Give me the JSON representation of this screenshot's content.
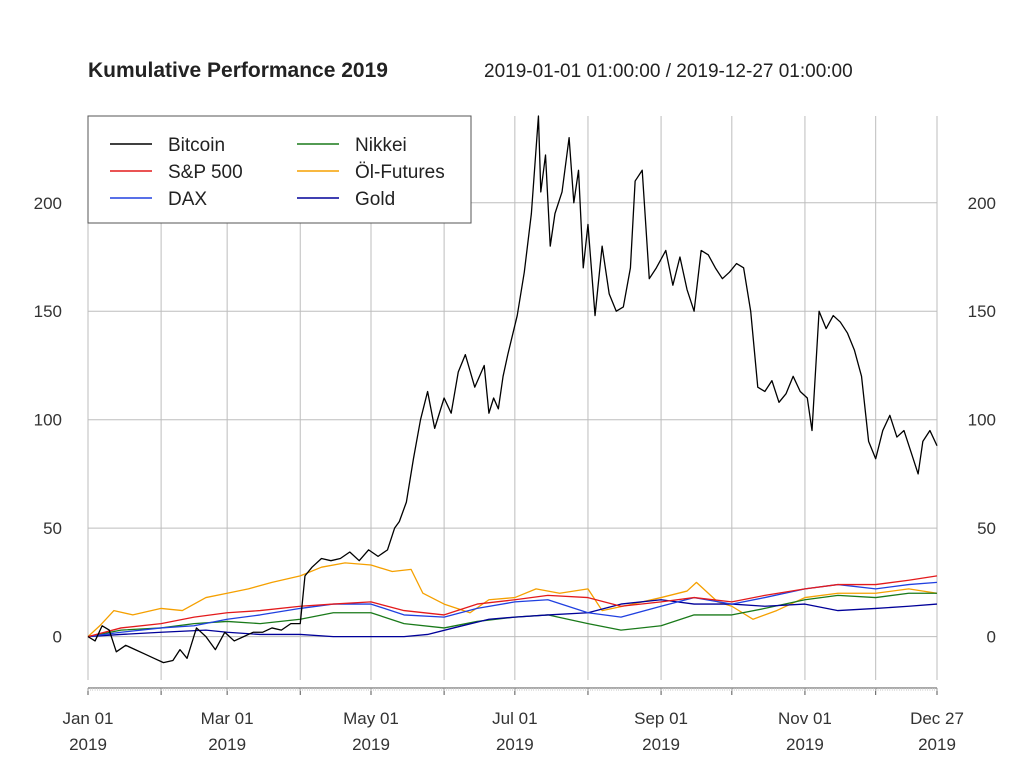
{
  "chart_data": {
    "type": "line",
    "title": "Kumulative Performance 2019",
    "subtitle": "2019-01-01 01:00:00 / 2019-12-27 01:00:00",
    "xlabel": "",
    "ylabel": "",
    "xlim": [
      "2019-01-01",
      "2019-12-27"
    ],
    "ylim": [
      -20,
      240
    ],
    "yticks": [
      0,
      50,
      100,
      150,
      200
    ],
    "xticks": [
      {
        "date": "2019-01-01",
        "label1": "Jan 01",
        "label2": "2019"
      },
      {
        "date": "2019-03-01",
        "label1": "Mar 01",
        "label2": "2019"
      },
      {
        "date": "2019-05-01",
        "label1": "May 01",
        "label2": "2019"
      },
      {
        "date": "2019-07-01",
        "label1": "Jul 01",
        "label2": "2019"
      },
      {
        "date": "2019-09-01",
        "label1": "Sep 01",
        "label2": "2019"
      },
      {
        "date": "2019-11-01",
        "label1": "Nov 01",
        "label2": "2019"
      },
      {
        "date": "2019-12-27",
        "label1": "Dec 27",
        "label2": "2019"
      }
    ],
    "grid": true,
    "legend_position": "top-left",
    "series": [
      {
        "name": "Bitcoin",
        "color": "#000000",
        "points": [
          [
            "2019-01-01",
            0
          ],
          [
            "2019-01-04",
            -2
          ],
          [
            "2019-01-07",
            5
          ],
          [
            "2019-01-10",
            3
          ],
          [
            "2019-01-13",
            -7
          ],
          [
            "2019-01-17",
            -4
          ],
          [
            "2019-01-21",
            -6
          ],
          [
            "2019-01-25",
            -8
          ],
          [
            "2019-01-29",
            -10
          ],
          [
            "2019-02-02",
            -12
          ],
          [
            "2019-02-06",
            -11
          ],
          [
            "2019-02-09",
            -6
          ],
          [
            "2019-02-12",
            -10
          ],
          [
            "2019-02-16",
            4
          ],
          [
            "2019-02-20",
            0
          ],
          [
            "2019-02-24",
            -6
          ],
          [
            "2019-02-28",
            2
          ],
          [
            "2019-03-04",
            -2
          ],
          [
            "2019-03-08",
            0
          ],
          [
            "2019-03-12",
            2
          ],
          [
            "2019-03-16",
            2
          ],
          [
            "2019-03-20",
            4
          ],
          [
            "2019-03-24",
            3
          ],
          [
            "2019-03-28",
            6
          ],
          [
            "2019-04-01",
            6
          ],
          [
            "2019-04-03",
            28
          ],
          [
            "2019-04-06",
            32
          ],
          [
            "2019-04-10",
            36
          ],
          [
            "2019-04-14",
            35
          ],
          [
            "2019-04-18",
            36
          ],
          [
            "2019-04-22",
            39
          ],
          [
            "2019-04-26",
            35
          ],
          [
            "2019-04-30",
            40
          ],
          [
            "2019-05-04",
            37
          ],
          [
            "2019-05-08",
            40
          ],
          [
            "2019-05-11",
            50
          ],
          [
            "2019-05-13",
            53
          ],
          [
            "2019-05-16",
            62
          ],
          [
            "2019-05-19",
            82
          ],
          [
            "2019-05-22",
            100
          ],
          [
            "2019-05-25",
            113
          ],
          [
            "2019-05-28",
            96
          ],
          [
            "2019-06-01",
            110
          ],
          [
            "2019-06-04",
            103
          ],
          [
            "2019-06-07",
            122
          ],
          [
            "2019-06-10",
            130
          ],
          [
            "2019-06-14",
            115
          ],
          [
            "2019-06-18",
            125
          ],
          [
            "2019-06-20",
            103
          ],
          [
            "2019-06-22",
            110
          ],
          [
            "2019-06-24",
            105
          ],
          [
            "2019-06-26",
            120
          ],
          [
            "2019-06-28",
            130
          ],
          [
            "2019-07-02",
            148
          ],
          [
            "2019-07-05",
            168
          ],
          [
            "2019-07-08",
            195
          ],
          [
            "2019-07-11",
            240
          ],
          [
            "2019-07-12",
            205
          ],
          [
            "2019-07-14",
            222
          ],
          [
            "2019-07-16",
            180
          ],
          [
            "2019-07-18",
            195
          ],
          [
            "2019-07-21",
            205
          ],
          [
            "2019-07-24",
            230
          ],
          [
            "2019-07-26",
            200
          ],
          [
            "2019-07-28",
            215
          ],
          [
            "2019-07-30",
            170
          ],
          [
            "2019-08-01",
            190
          ],
          [
            "2019-08-04",
            148
          ],
          [
            "2019-08-07",
            180
          ],
          [
            "2019-08-10",
            158
          ],
          [
            "2019-08-13",
            150
          ],
          [
            "2019-08-16",
            152
          ],
          [
            "2019-08-19",
            170
          ],
          [
            "2019-08-21",
            210
          ],
          [
            "2019-08-24",
            215
          ],
          [
            "2019-08-27",
            165
          ],
          [
            "2019-08-30",
            170
          ],
          [
            "2019-09-03",
            178
          ],
          [
            "2019-09-06",
            162
          ],
          [
            "2019-09-09",
            175
          ],
          [
            "2019-09-12",
            160
          ],
          [
            "2019-09-15",
            150
          ],
          [
            "2019-09-18",
            178
          ],
          [
            "2019-09-21",
            176
          ],
          [
            "2019-09-24",
            170
          ],
          [
            "2019-09-27",
            165
          ],
          [
            "2019-09-30",
            168
          ],
          [
            "2019-10-03",
            172
          ],
          [
            "2019-10-06",
            170
          ],
          [
            "2019-10-09",
            150
          ],
          [
            "2019-10-12",
            115
          ],
          [
            "2019-10-15",
            113
          ],
          [
            "2019-10-18",
            118
          ],
          [
            "2019-10-21",
            108
          ],
          [
            "2019-10-24",
            112
          ],
          [
            "2019-10-27",
            120
          ],
          [
            "2019-10-30",
            113
          ],
          [
            "2019-11-02",
            110
          ],
          [
            "2019-11-04",
            95
          ],
          [
            "2019-11-07",
            150
          ],
          [
            "2019-11-10",
            142
          ],
          [
            "2019-11-13",
            148
          ],
          [
            "2019-11-16",
            145
          ],
          [
            "2019-11-19",
            140
          ],
          [
            "2019-11-22",
            132
          ],
          [
            "2019-11-25",
            120
          ],
          [
            "2019-11-28",
            90
          ],
          [
            "2019-12-01",
            82
          ],
          [
            "2019-12-04",
            95
          ],
          [
            "2019-12-07",
            102
          ],
          [
            "2019-12-10",
            92
          ],
          [
            "2019-12-13",
            95
          ],
          [
            "2019-12-16",
            85
          ],
          [
            "2019-12-19",
            75
          ],
          [
            "2019-12-21",
            90
          ],
          [
            "2019-12-24",
            95
          ],
          [
            "2019-12-27",
            88
          ]
        ]
      },
      {
        "name": "S&P 500",
        "color": "#e31a1c",
        "points": [
          [
            "2019-01-01",
            0
          ],
          [
            "2019-01-15",
            4
          ],
          [
            "2019-02-01",
            6
          ],
          [
            "2019-02-15",
            9
          ],
          [
            "2019-03-01",
            11
          ],
          [
            "2019-03-15",
            12
          ],
          [
            "2019-04-01",
            14
          ],
          [
            "2019-04-15",
            15
          ],
          [
            "2019-05-01",
            16
          ],
          [
            "2019-05-15",
            12
          ],
          [
            "2019-06-01",
            10
          ],
          [
            "2019-06-15",
            15
          ],
          [
            "2019-07-01",
            17
          ],
          [
            "2019-07-15",
            19
          ],
          [
            "2019-08-01",
            18
          ],
          [
            "2019-08-15",
            14
          ],
          [
            "2019-09-01",
            16
          ],
          [
            "2019-09-15",
            18
          ],
          [
            "2019-10-01",
            16
          ],
          [
            "2019-10-15",
            19
          ],
          [
            "2019-11-01",
            22
          ],
          [
            "2019-11-15",
            24
          ],
          [
            "2019-12-01",
            24
          ],
          [
            "2019-12-15",
            26
          ],
          [
            "2019-12-27",
            28
          ]
        ]
      },
      {
        "name": "DAX",
        "color": "#2040e0",
        "points": [
          [
            "2019-01-01",
            0
          ],
          [
            "2019-01-15",
            2
          ],
          [
            "2019-02-01",
            4
          ],
          [
            "2019-02-15",
            5
          ],
          [
            "2019-03-01",
            8
          ],
          [
            "2019-03-15",
            10
          ],
          [
            "2019-04-01",
            13
          ],
          [
            "2019-04-15",
            15
          ],
          [
            "2019-05-01",
            15
          ],
          [
            "2019-05-15",
            10
          ],
          [
            "2019-06-01",
            9
          ],
          [
            "2019-06-15",
            13
          ],
          [
            "2019-07-01",
            16
          ],
          [
            "2019-07-15",
            17
          ],
          [
            "2019-08-01",
            11
          ],
          [
            "2019-08-15",
            9
          ],
          [
            "2019-09-01",
            14
          ],
          [
            "2019-09-15",
            18
          ],
          [
            "2019-10-01",
            15
          ],
          [
            "2019-10-15",
            18
          ],
          [
            "2019-11-01",
            22
          ],
          [
            "2019-11-15",
            24
          ],
          [
            "2019-12-01",
            22
          ],
          [
            "2019-12-15",
            24
          ],
          [
            "2019-12-27",
            25
          ]
        ]
      },
      {
        "name": "Nikkei",
        "color": "#1a7a1a",
        "points": [
          [
            "2019-01-01",
            0
          ],
          [
            "2019-01-15",
            3
          ],
          [
            "2019-02-01",
            4
          ],
          [
            "2019-02-15",
            6
          ],
          [
            "2019-03-01",
            7
          ],
          [
            "2019-03-15",
            6
          ],
          [
            "2019-04-01",
            8
          ],
          [
            "2019-04-15",
            11
          ],
          [
            "2019-05-01",
            11
          ],
          [
            "2019-05-15",
            6
          ],
          [
            "2019-06-01",
            4
          ],
          [
            "2019-06-15",
            7
          ],
          [
            "2019-07-01",
            9
          ],
          [
            "2019-07-15",
            10
          ],
          [
            "2019-08-01",
            6
          ],
          [
            "2019-08-15",
            3
          ],
          [
            "2019-09-01",
            5
          ],
          [
            "2019-09-15",
            10
          ],
          [
            "2019-10-01",
            10
          ],
          [
            "2019-10-15",
            13
          ],
          [
            "2019-11-01",
            17
          ],
          [
            "2019-11-15",
            19
          ],
          [
            "2019-12-01",
            18
          ],
          [
            "2019-12-15",
            20
          ],
          [
            "2019-12-27",
            20
          ]
        ]
      },
      {
        "name": "Öl-Futures",
        "color": "#f5a000",
        "points": [
          [
            "2019-01-01",
            0
          ],
          [
            "2019-01-06",
            5
          ],
          [
            "2019-01-12",
            12
          ],
          [
            "2019-01-20",
            10
          ],
          [
            "2019-02-01",
            13
          ],
          [
            "2019-02-10",
            12
          ],
          [
            "2019-02-20",
            18
          ],
          [
            "2019-03-01",
            20
          ],
          [
            "2019-03-10",
            22
          ],
          [
            "2019-03-20",
            25
          ],
          [
            "2019-04-01",
            28
          ],
          [
            "2019-04-10",
            32
          ],
          [
            "2019-04-20",
            34
          ],
          [
            "2019-05-01",
            33
          ],
          [
            "2019-05-10",
            30
          ],
          [
            "2019-05-18",
            31
          ],
          [
            "2019-05-23",
            20
          ],
          [
            "2019-06-01",
            15
          ],
          [
            "2019-06-12",
            11
          ],
          [
            "2019-06-20",
            17
          ],
          [
            "2019-07-01",
            18
          ],
          [
            "2019-07-10",
            22
          ],
          [
            "2019-07-20",
            20
          ],
          [
            "2019-08-01",
            22
          ],
          [
            "2019-08-07",
            12
          ],
          [
            "2019-08-20",
            15
          ],
          [
            "2019-09-01",
            18
          ],
          [
            "2019-09-12",
            21
          ],
          [
            "2019-09-16",
            25
          ],
          [
            "2019-09-25",
            16
          ],
          [
            "2019-10-01",
            14
          ],
          [
            "2019-10-10",
            8
          ],
          [
            "2019-10-20",
            12
          ],
          [
            "2019-11-01",
            18
          ],
          [
            "2019-11-15",
            20
          ],
          [
            "2019-12-01",
            20
          ],
          [
            "2019-12-15",
            22
          ],
          [
            "2019-12-27",
            20
          ]
        ]
      },
      {
        "name": "Gold",
        "color": "#000099",
        "points": [
          [
            "2019-01-01",
            0
          ],
          [
            "2019-01-15",
            1
          ],
          [
            "2019-02-01",
            2
          ],
          [
            "2019-02-20",
            3
          ],
          [
            "2019-03-01",
            2
          ],
          [
            "2019-03-15",
            1
          ],
          [
            "2019-04-01",
            1
          ],
          [
            "2019-04-15",
            0
          ],
          [
            "2019-05-01",
            0
          ],
          [
            "2019-05-15",
            0
          ],
          [
            "2019-05-25",
            1
          ],
          [
            "2019-06-05",
            4
          ],
          [
            "2019-06-20",
            8
          ],
          [
            "2019-07-01",
            9
          ],
          [
            "2019-07-15",
            10
          ],
          [
            "2019-08-01",
            11
          ],
          [
            "2019-08-15",
            15
          ],
          [
            "2019-09-01",
            17
          ],
          [
            "2019-09-15",
            15
          ],
          [
            "2019-10-01",
            15
          ],
          [
            "2019-10-15",
            14
          ],
          [
            "2019-11-01",
            15
          ],
          [
            "2019-11-15",
            12
          ],
          [
            "2019-12-01",
            13
          ],
          [
            "2019-12-15",
            14
          ],
          [
            "2019-12-27",
            15
          ]
        ]
      }
    ],
    "legend_layout": [
      [
        "Bitcoin",
        "Nikkei"
      ],
      [
        "S&P 500",
        "Öl-Futures"
      ],
      [
        "DAX",
        "Gold"
      ]
    ]
  }
}
